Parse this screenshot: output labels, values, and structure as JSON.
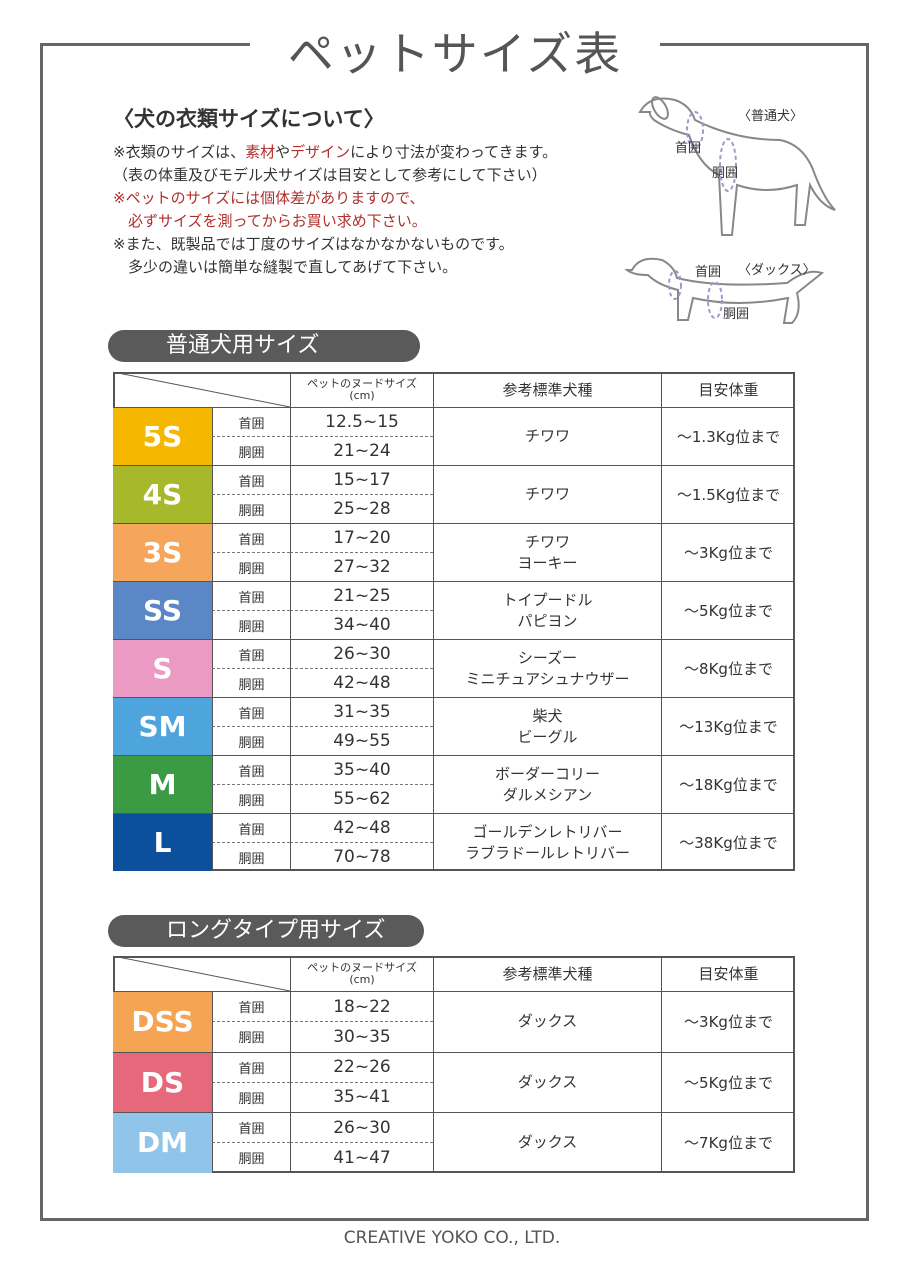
{
  "title": "ペットサイズ表",
  "intro": {
    "heading": "〈犬の衣類サイズについて〉",
    "lines": [
      {
        "segments": [
          "※衣類のサイズは、",
          "素材",
          "や",
          "デザイン",
          "により寸法が変わってきます。"
        ]
      },
      {
        "segments": [
          "（表の体重及びモデル犬サイズは目安として参考にして下さい）"
        ]
      },
      {
        "segments": [
          "※ペットのサイズには個体差がありますので、"
        ]
      },
      {
        "segments": [
          "　必ずサイズを測ってからお買い求め下さい。"
        ]
      },
      {
        "segments": [
          "※また、既製品では丁度のサイズはなかなかないものです。"
        ]
      },
      {
        "segments": [
          "　多少の違いは簡単な縫製で直してあげて下さい。"
        ]
      }
    ]
  },
  "diagrams": {
    "normal": {
      "label": "〈普通犬〉",
      "neck": "首囲",
      "body": "胴囲"
    },
    "dachshund": {
      "label": "〈ダックス〉",
      "neck": "首囲",
      "body": "胴囲"
    }
  },
  "tables": [
    {
      "title": "普通犬用サイズ",
      "header": {
        "nude_size": "ペットのヌードサイズ",
        "unit": "(cm)",
        "breed": "参考標準犬種",
        "weight": "目安体重"
      },
      "rows": [
        {
          "size": "5S",
          "color": "#f6b700",
          "neck_label": "首囲",
          "neck": "12.5~15",
          "body_label": "胴囲",
          "body": "21~24",
          "breeds": [
            "チワワ"
          ],
          "weight": "～1.3Kg位まで"
        },
        {
          "size": "4S",
          "color": "#a7b82a",
          "neck_label": "首囲",
          "neck": "15~17",
          "body_label": "胴囲",
          "body": "25~28",
          "breeds": [
            "チワワ"
          ],
          "weight": "～1.5Kg位まで"
        },
        {
          "size": "3S",
          "color": "#f5a65b",
          "neck_label": "首囲",
          "neck": "17~20",
          "body_label": "胴囲",
          "body": "27~32",
          "breeds": [
            "チワワ",
            "ヨーキー"
          ],
          "weight": "～3Kg位まで"
        },
        {
          "size": "SS",
          "color": "#5b87c6",
          "neck_label": "首囲",
          "neck": "21~25",
          "body_label": "胴囲",
          "body": "34~40",
          "breeds": [
            "トイプードル",
            "パピヨン"
          ],
          "weight": "～5Kg位まで"
        },
        {
          "size": "S",
          "color": "#eb9ac4",
          "neck_label": "首囲",
          "neck": "26~30",
          "body_label": "胴囲",
          "body": "42~48",
          "breeds": [
            "シーズー",
            "ミニチュアシュナウザー"
          ],
          "weight": "～8Kg位まで"
        },
        {
          "size": "SM",
          "color": "#4ea4dc",
          "neck_label": "首囲",
          "neck": "31~35",
          "body_label": "胴囲",
          "body": "49~55",
          "breeds": [
            "柴犬",
            "ビーグル"
          ],
          "weight": "～13Kg位まで"
        },
        {
          "size": "M",
          "color": "#3a9b44",
          "neck_label": "首囲",
          "neck": "35~40",
          "body_label": "胴囲",
          "body": "55~62",
          "breeds": [
            "ボーダーコリー",
            "ダルメシアン"
          ],
          "weight": "～18Kg位まで"
        },
        {
          "size": "L",
          "color": "#0c4f9c",
          "neck_label": "首囲",
          "neck": "42~48",
          "body_label": "胴囲",
          "body": "70~78",
          "breeds": [
            "ゴールデンレトリバー",
            "ラブラドールレトリバー"
          ],
          "weight": "～38Kg位まで"
        }
      ]
    },
    {
      "title": "ロングタイプ用サイズ",
      "header": {
        "nude_size": "ペットのヌードサイズ",
        "unit": "(cm)",
        "breed": "参考標準犬種",
        "weight": "目安体重"
      },
      "rows": [
        {
          "size": "DSS",
          "color": "#f4a453",
          "neck_label": "首囲",
          "neck": "18~22",
          "body_label": "胴囲",
          "body": "30~35",
          "breeds": [
            "ダックス"
          ],
          "weight": "～3Kg位まで"
        },
        {
          "size": "DS",
          "color": "#e5697b",
          "neck_label": "首囲",
          "neck": "22~26",
          "body_label": "胴囲",
          "body": "35~41",
          "breeds": [
            "ダックス"
          ],
          "weight": "～5Kg位まで"
        },
        {
          "size": "DM",
          "color": "#90c4e9",
          "neck_label": "首囲",
          "neck": "26~30",
          "body_label": "胴囲",
          "body": "41~47",
          "breeds": [
            "ダックス"
          ],
          "weight": "～7Kg位まで"
        }
      ]
    }
  ],
  "footer": "CREATIVE YOKO CO., LTD."
}
